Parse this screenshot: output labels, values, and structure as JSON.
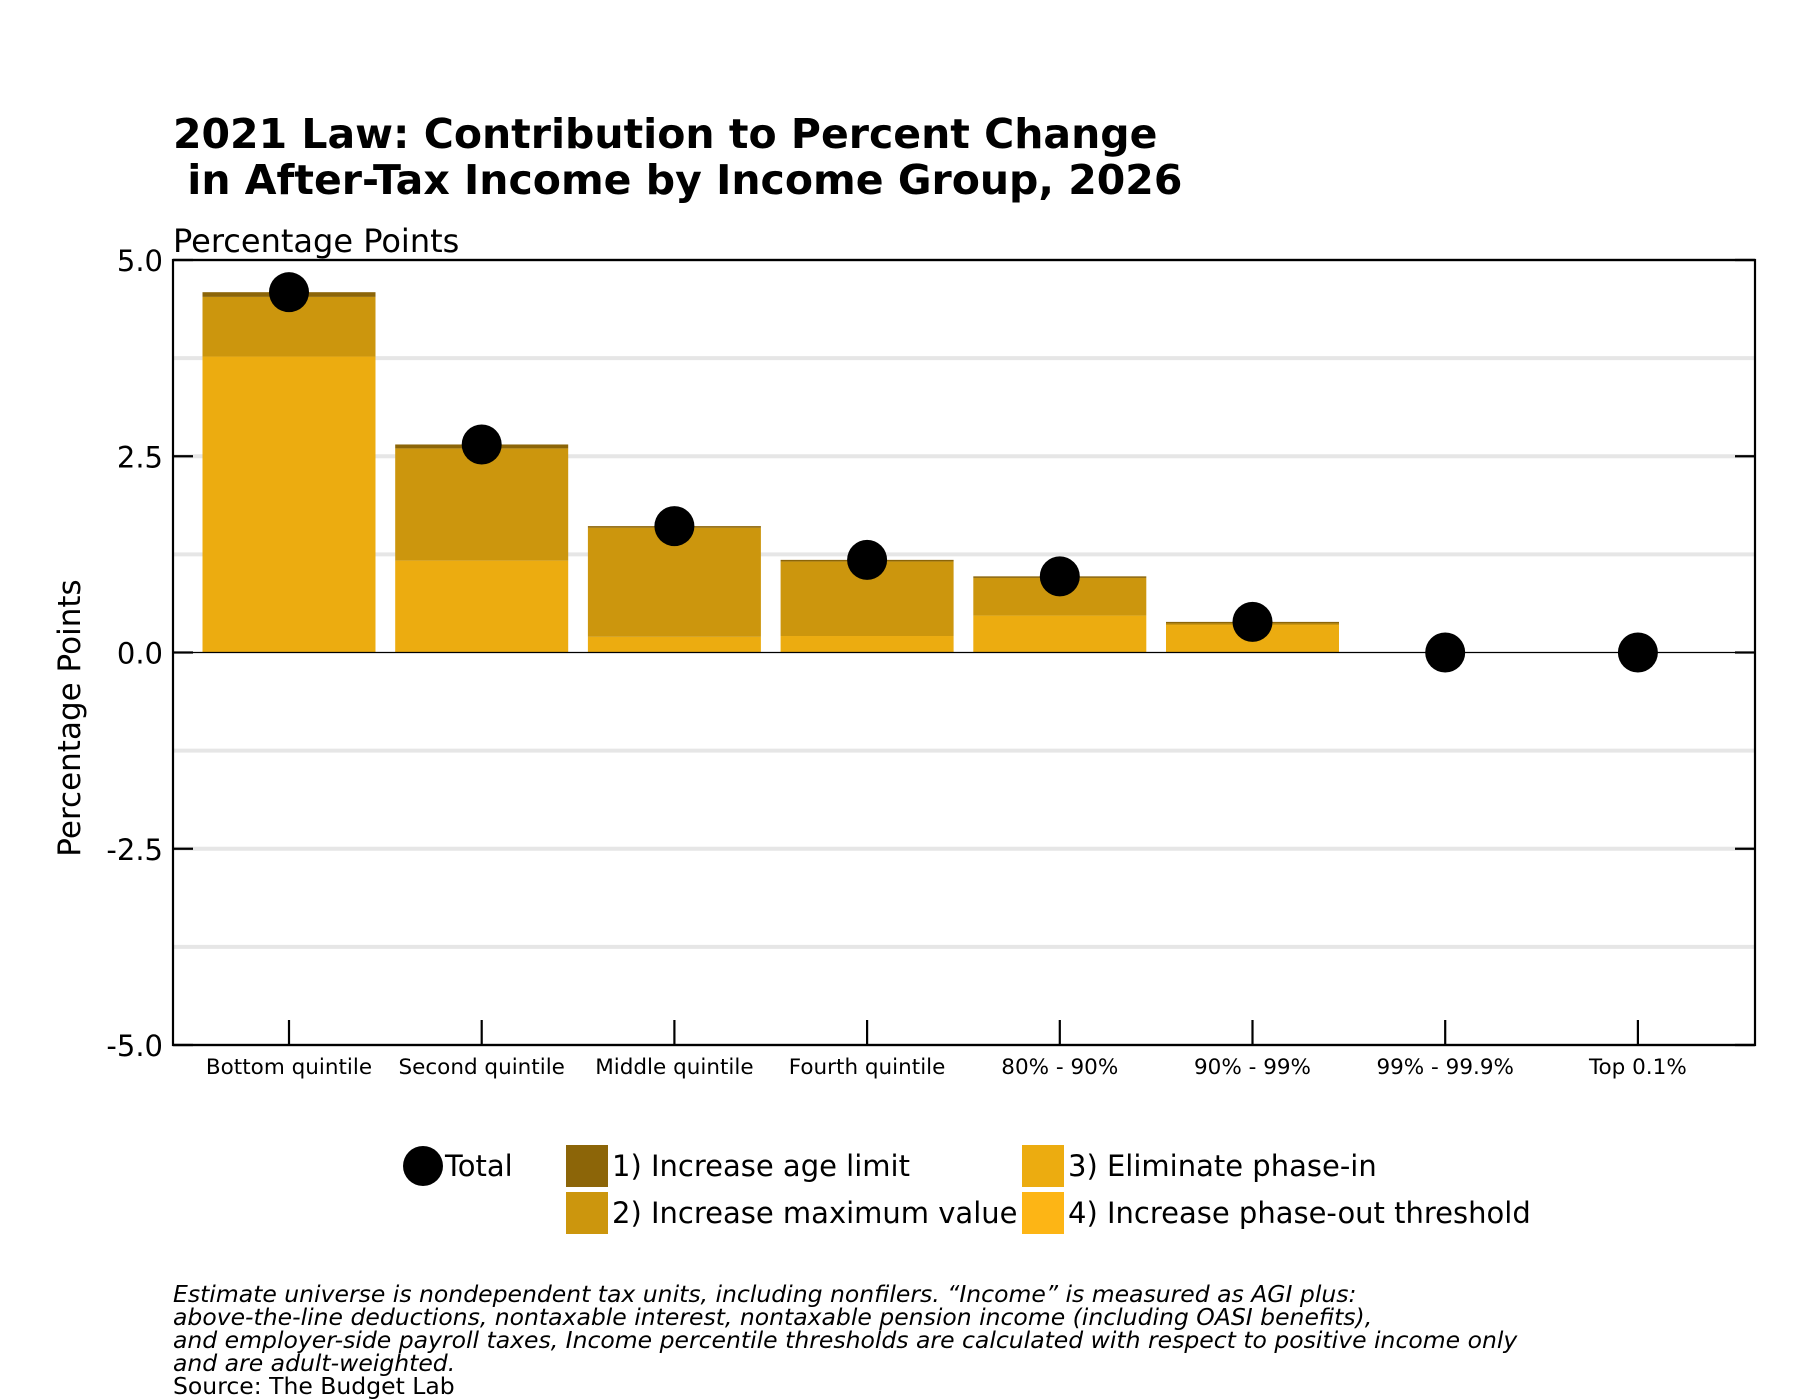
{
  "title": "2021 Law: Contribution to Percent Change\n in After-Tax Income by Income Group, 2026",
  "subtitle": "Percentage Points",
  "chart_data": {
    "type": "bar",
    "stacked": true,
    "ylabel": "Percentage Points",
    "xlabel": "",
    "ylim": [
      -5.0,
      5.0
    ],
    "yticks": [
      "5.0",
      "2.5",
      "0.0",
      "-2.5",
      "-5.0"
    ],
    "yticks_values": [
      5.0,
      2.5,
      0.0,
      -2.5,
      -5.0
    ],
    "grid": true,
    "legend_position": "bottom",
    "categories": [
      "Bottom quintile",
      "Second quintile",
      "Middle quintile",
      "Fourth quintile",
      "80% - 90%",
      "90% - 99%",
      "99% - 99.9%",
      "Top 0.1%"
    ],
    "series": [
      {
        "name": "4) Increase phase-out threshold",
        "color": "#FDB515",
        "values": [
          0.0,
          0.0,
          0.0,
          0.0,
          0.0,
          0.0,
          0.0,
          0.0
        ]
      },
      {
        "name": "3) Eliminate phase-in",
        "color": "#ECAC10",
        "values": [
          3.77,
          1.17,
          0.2,
          0.21,
          0.47,
          0.35,
          0.0,
          0.0
        ]
      },
      {
        "name": "2) Increase maximum value",
        "color": "#CC960D",
        "values": [
          0.76,
          1.43,
          1.39,
          0.95,
          0.48,
          0.02,
          0.0,
          0.0
        ]
      },
      {
        "name": "1) Increase age limit",
        "color": "#8C6508",
        "values": [
          0.06,
          0.05,
          0.02,
          0.02,
          0.02,
          0.02,
          0.0,
          0.0
        ]
      }
    ],
    "total": {
      "name": "Total",
      "color": "#000000",
      "values": [
        4.59,
        2.65,
        1.61,
        1.18,
        0.97,
        0.39,
        0.0,
        0.0
      ]
    }
  },
  "legend": [
    {
      "label": "Total",
      "kind": "dot",
      "color": "#000000"
    },
    {
      "label": "1) Increase age limit",
      "kind": "swatch",
      "color": "#8C6508"
    },
    {
      "label": "3) Eliminate phase-in",
      "kind": "swatch",
      "color": "#ECAC10"
    },
    {
      "label": "2) Increase maximum value",
      "kind": "swatch",
      "color": "#CC960D"
    },
    {
      "label": "4) Increase phase-out threshold",
      "kind": "swatch",
      "color": "#FDB515"
    }
  ],
  "notes": [
    "Estimate universe is nondependent tax units, including nonfilers. “Income” is measured as AGI plus:",
    "above-the-line deductions, nontaxable interest, nontaxable pension income (including OASI benefits),",
    "and employer-side payroll taxes, Income percentile thresholds are calculated with respect to positive income only",
    "and are adult-weighted."
  ],
  "source": "Source: The Budget Lab"
}
